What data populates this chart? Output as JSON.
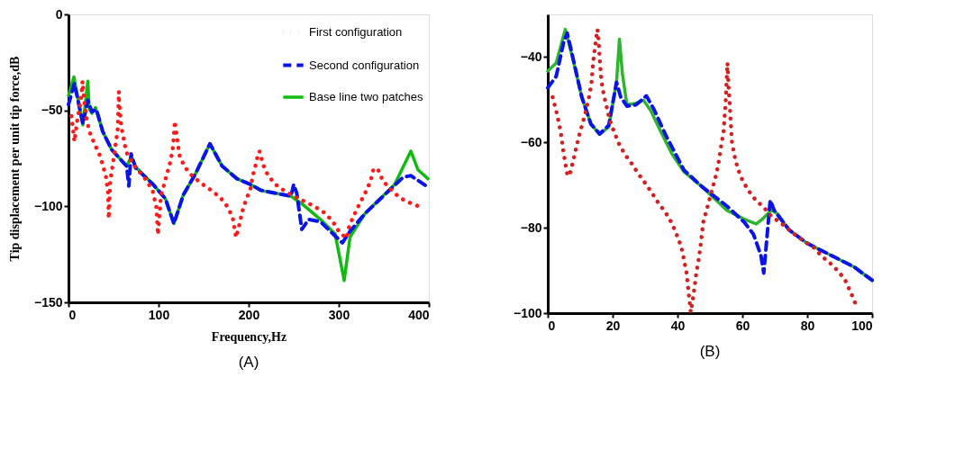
{
  "chart_data": [
    {
      "type": "line",
      "title": "(A)",
      "xlabel": "Frequency,Hz",
      "ylabel": "Tip displacement per unit tip force,dB",
      "xlim": [
        0,
        400
      ],
      "ylim": [
        -150,
        0
      ],
      "xticks": [
        0,
        100,
        200,
        300,
        400
      ],
      "yticks": [
        0,
        -50,
        -100,
        -150
      ],
      "grid": false,
      "legend": "top right",
      "marker": "none",
      "series": [
        {
          "name": "First configuration",
          "color": "#ff1a1a",
          "line_style": "dotted",
          "x": [
            3.3,
            6.6,
            10,
            14,
            15.6,
            18.2,
            20.5,
            23.5,
            28.8,
            34.8,
            41.4,
            44,
            44.7,
            46.4,
            50.7,
            54.6,
            56,
            56.3,
            58.6,
            64,
            70.5,
            78.5,
            87,
            93.7,
            97.7,
            99.3,
            102.6,
            106.6,
            113.6,
            116,
            118,
            120.9,
            123.5,
            129.8,
            138,
            148.3,
            158.9,
            168.9,
            177,
            182.5,
            186,
            189.7,
            192.7,
            197,
            202,
            204.3,
            208,
            211,
            212.5,
            215.7,
            221.3,
            229.8,
            240,
            251,
            262,
            273,
            283.6,
            293,
            300,
            308.5,
            311.8,
            317.4,
            323.3,
            329.8,
            335.4,
            338.7,
            343.6,
            349,
            358.4,
            367.5,
            378,
            390
          ],
          "values": [
            -53,
            -66.2,
            -54.5,
            -44,
            -34.8,
            -48.5,
            -55.3,
            -61.4,
            -67.4,
            -73.5,
            -84,
            -93.2,
            -106.4,
            -86.8,
            -73.5,
            -59.8,
            -40.2,
            -45.5,
            -58.3,
            -71.5,
            -77.3,
            -81.8,
            -86.7,
            -92.4,
            -100.8,
            -114.8,
            -94.7,
            -87.9,
            -75.8,
            -69,
            -55.6,
            -65.9,
            -74.2,
            -80,
            -84.5,
            -88.3,
            -91.8,
            -95.6,
            -100.5,
            -106.4,
            -116.2,
            -109.4,
            -103,
            -96.7,
            -91,
            -84.5,
            -78,
            -71.5,
            -71.5,
            -78,
            -83.8,
            -88.6,
            -92,
            -95,
            -97.4,
            -100,
            -103.2,
            -107.6,
            -113,
            -116.7,
            -110,
            -104.2,
            -98.5,
            -92.6,
            -86.8,
            -80.3,
            -80.8,
            -86.8,
            -91.4,
            -95.5,
            -98,
            -100.2
          ]
        },
        {
          "name": "Second configuration",
          "color": "#0a14e6",
          "line_style": "dashed",
          "x": [
            0,
            6.6,
            16,
            21.5,
            26,
            31,
            38,
            48,
            64.5,
            65,
            67,
            69.5,
            74.5,
            94,
            107.6,
            117,
            127.5,
            141,
            157,
            170.5,
            187,
            202,
            214,
            247,
            250,
            253.4,
            259,
            266.6,
            279.7,
            304,
            312.5,
            329,
            371.5,
            380,
            399
          ],
          "values": [
            -47,
            -36,
            -57,
            -44.7,
            -50.8,
            -49.5,
            -61,
            -70.5,
            -79,
            -81,
            -89.4,
            -72.7,
            -80,
            -88.6,
            -96,
            -109,
            -94,
            -83,
            -67.4,
            -79,
            -85.6,
            -88.6,
            -91.7,
            -94.7,
            -88.6,
            -93.2,
            -112,
            -106.8,
            -108,
            -119,
            -113,
            -103.8,
            -84.8,
            -84,
            -90
          ]
        },
        {
          "name": "Base line two patches",
          "color": "#11bb11",
          "line_style": "solid",
          "x": [
            0,
            6,
            16,
            21.5,
            23,
            26,
            30,
            38,
            48,
            64.5,
            70,
            74.5,
            94,
            107.6,
            117,
            127.5,
            141,
            157,
            170.5,
            187,
            202,
            214,
            247,
            260,
            279.6,
            296,
            306,
            312.5,
            329,
            362,
            380,
            388,
            399
          ],
          "values": [
            -42.4,
            -32.6,
            -57.6,
            -34.8,
            -49,
            -51.5,
            -48.5,
            -61,
            -70.5,
            -79,
            -74,
            -79.5,
            -88.6,
            -96,
            -109,
            -94,
            -83,
            -67.4,
            -79,
            -85.6,
            -88.6,
            -91.7,
            -94.7,
            -99,
            -106.8,
            -114.4,
            -138.6,
            -116,
            -103.8,
            -88.6,
            -71.2,
            -81,
            -85.6
          ]
        }
      ]
    },
    {
      "type": "line",
      "title": "(B)",
      "xlim": [
        0,
        100
      ],
      "ylim": [
        -100,
        -30
      ],
      "xticks": [
        0,
        20,
        40,
        60,
        80,
        100
      ],
      "yticks": [
        -100,
        -80,
        -60,
        -40
      ],
      "grid": false,
      "marker": "none",
      "series": [
        {
          "color": "#d42020",
          "line_style": "dotted",
          "x": [
            1.5,
            2.6,
            3.5,
            4.2,
            4.7,
            5.4,
            6.1,
            7,
            7.9,
            8.8,
            9.8,
            10.9,
            11.9,
            12.8,
            13.5,
            13.8,
            14.2,
            14.7,
            15.3,
            15.7,
            15.9,
            16.2,
            16.5,
            17.2,
            18.1,
            19,
            20.3,
            21.8,
            23.7,
            25.8,
            27.8,
            30,
            32.1,
            34.1,
            36.3,
            38.1,
            39.7,
            41.1,
            42,
            42.8,
            43.2,
            43.6,
            44.1,
            45.3,
            45.8,
            46.5,
            47.1,
            48,
            49.2,
            51.2,
            52.2,
            52.9,
            53.5,
            54.2,
            54.5,
            54.8,
            55,
            55.2,
            55.4,
            55.8,
            56.1,
            56.3,
            56.8,
            57.6,
            58.6,
            60.1,
            61.9,
            64.1,
            66.6,
            68.9,
            71.6,
            74.4,
            76.7,
            79.4,
            82.1,
            84.4,
            87.2,
            89.6,
            91.7,
            93.4,
            94.9
          ],
          "values": [
            -49.4,
            -52.6,
            -55.6,
            -58.6,
            -61.6,
            -64.8,
            -67.9,
            -66.9,
            -64.1,
            -61.1,
            -58,
            -55.1,
            -52.2,
            -49.1,
            -45.9,
            -42.8,
            -39.8,
            -36.9,
            -33.5,
            -36.1,
            -39.3,
            -42.3,
            -45.4,
            -48.6,
            -51.5,
            -54.5,
            -57.2,
            -60.1,
            -62.7,
            -64.9,
            -67.2,
            -69.5,
            -71.8,
            -74.2,
            -76.4,
            -78.7,
            -81.5,
            -84.3,
            -87.5,
            -90.6,
            -93.5,
            -96.5,
            -99.8,
            -93.7,
            -90.6,
            -87.5,
            -84.3,
            -78.4,
            -75.2,
            -69.6,
            -66.7,
            -63.6,
            -60.6,
            -57.4,
            -54.3,
            -51.2,
            -48.1,
            -44.7,
            -41.4,
            -47.7,
            -50.8,
            -54,
            -60,
            -63.2,
            -66.2,
            -69,
            -71.3,
            -73.5,
            -75.2,
            -77.3,
            -78.7,
            -80.5,
            -81.9,
            -83.3,
            -84.7,
            -86.6,
            -88.4,
            -90.2,
            -92.3,
            -95.1,
            -97.9
          ]
        },
        {
          "color": "#0a14e6",
          "line_style": "dashed",
          "x": [
            0,
            2.6,
            4.9,
            6,
            7.2,
            10.5,
            13.3,
            16,
            18.8,
            21.2,
            22.5,
            24.4,
            27.2,
            30.4,
            32.7,
            36.5,
            42,
            47.6,
            55.2,
            60.6,
            63.4,
            65.7,
            66.6,
            67.5,
            68.6,
            69.8,
            74.4,
            79.9,
            87.2,
            94.5,
            100
          ],
          "values": [
            -47.2,
            -44.5,
            -36.5,
            -34.4,
            -38.3,
            -49.4,
            -55.7,
            -58,
            -56,
            -45.9,
            -49.4,
            -51.5,
            -51.2,
            -49.1,
            -52.2,
            -58.5,
            -66.5,
            -70.4,
            -74.9,
            -78.7,
            -81.5,
            -86.4,
            -90.6,
            -82.9,
            -73.5,
            -75.9,
            -80.5,
            -83.6,
            -86.4,
            -89.2,
            -92.3
          ]
        },
        {
          "color": "#2db52d",
          "line_style": "solid",
          "x": [
            0,
            2.6,
            5.4,
            7.7,
            10.5,
            13.3,
            16,
            18.8,
            21.2,
            22.1,
            23,
            24.4,
            27.2,
            29.5,
            31.8,
            34.6,
            38.3,
            42,
            47.6,
            55.2,
            60.6,
            64.3,
            66.1,
            68.9,
            70.7,
            74.4,
            79.9,
            87.2,
            94.5,
            100
          ],
          "values": [
            -43.3,
            -41.4,
            -33.5,
            -40.3,
            -49.4,
            -55.7,
            -58.1,
            -56.4,
            -45.9,
            -35.8,
            -43.8,
            -51.2,
            -50.8,
            -50.1,
            -52.6,
            -57.1,
            -62.7,
            -66.9,
            -70.4,
            -75.9,
            -78,
            -79.1,
            -78,
            -75.9,
            -76.6,
            -80.5,
            -83.6,
            -86.4,
            -89.2,
            -92.3
          ]
        }
      ]
    }
  ]
}
